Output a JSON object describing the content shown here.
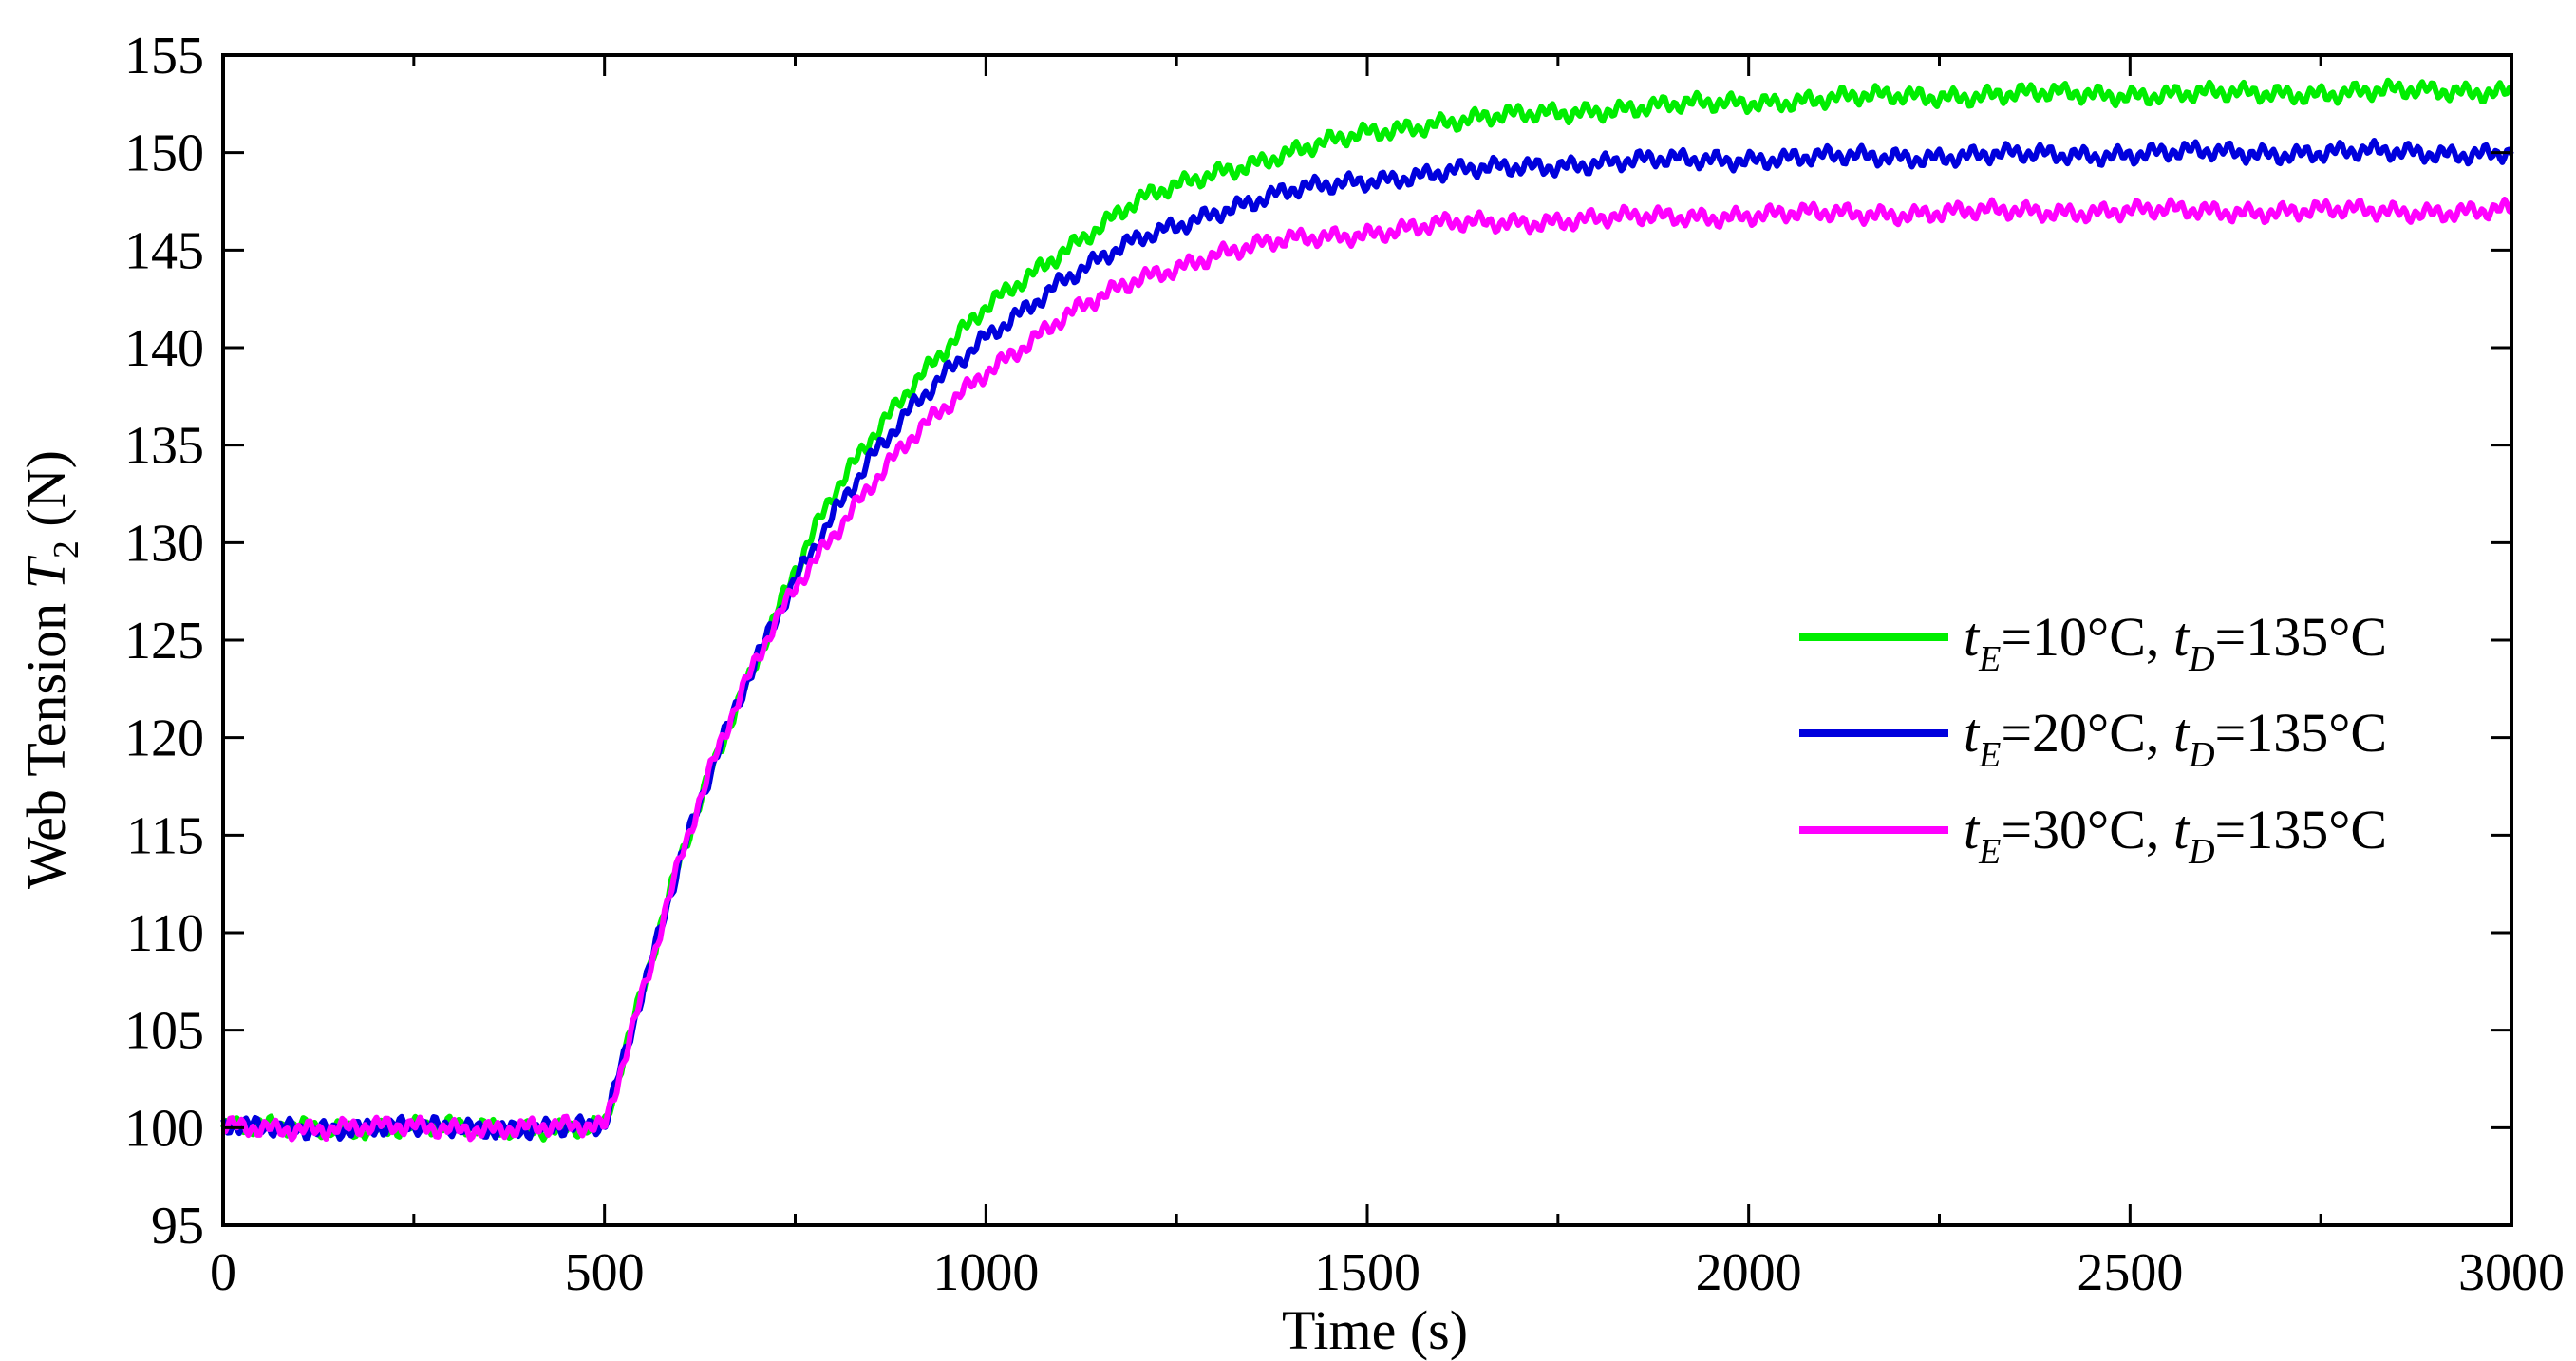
{
  "chart_data": {
    "type": "line",
    "title": "",
    "xlabel": "Time (s)",
    "ylabel": {
      "prefix": "Web Tension ",
      "symbol": "T",
      "subscript": "2",
      "suffix": " (N)"
    },
    "xlim": [
      0,
      3000
    ],
    "ylim": [
      95,
      155
    ],
    "x_ticks": [
      0,
      500,
      1000,
      1500,
      2000,
      2500,
      3000
    ],
    "y_ticks": [
      95,
      100,
      105,
      110,
      115,
      120,
      125,
      130,
      135,
      140,
      145,
      150,
      155
    ],
    "x_tick_labels": [
      "0",
      "500",
      "1000",
      "1500",
      "2000",
      "2500",
      "3000"
    ],
    "y_tick_labels": [
      "95",
      "100",
      "105",
      "110",
      "115",
      "120",
      "125",
      "130",
      "135",
      "140",
      "145",
      "150",
      "155"
    ],
    "grid": false,
    "legend_position": "right-middle",
    "x": [
      0,
      250,
      500,
      550,
      600,
      650,
      700,
      750,
      800,
      850,
      900,
      1000,
      1100,
      1200,
      1300,
      1400,
      1500,
      1600,
      1800,
      2000,
      2200,
      2400,
      2600,
      2800,
      3000
    ],
    "series": [
      {
        "name": "tE=10°C, tD=135°C",
        "legend": {
          "t1": "t",
          "s1": "E",
          "m1": "=10°C, ",
          "t2": "t",
          "s2": "D",
          "m2": "=135°C"
        },
        "color": "#00ee00",
        "values": [
          100.0,
          100.0,
          100.0,
          107.0,
          114.0,
          119.5,
          124.0,
          128.5,
          132.5,
          135.5,
          138.0,
          142.0,
          145.0,
          147.5,
          149.0,
          150.0,
          151.0,
          151.6,
          152.2,
          152.6,
          152.9,
          153.0,
          153.0,
          153.1,
          153.2
        ]
      },
      {
        "name": "tE=20°C, tD=135°C",
        "legend": {
          "t1": "t",
          "s1": "E",
          "m1": "=20°C, ",
          "t2": "t",
          "s2": "D",
          "m2": "=135°C"
        },
        "color": "#0000dd",
        "values": [
          100.0,
          100.0,
          100.0,
          107.0,
          114.0,
          119.5,
          124.0,
          128.0,
          131.5,
          134.5,
          136.8,
          140.5,
          143.5,
          145.5,
          147.0,
          148.0,
          148.6,
          149.0,
          149.5,
          149.7,
          149.8,
          149.9,
          150.0,
          150.0,
          150.0
        ]
      },
      {
        "name": "tE=30°C, tD=135°C",
        "legend": {
          "t1": "t",
          "s1": "E",
          "m1": "=30°C, ",
          "t2": "t",
          "s2": "D",
          "m2": "=135°C"
        },
        "color": "#ff00ff",
        "values": [
          100.0,
          100.0,
          100.0,
          107.0,
          114.0,
          119.5,
          124.0,
          127.8,
          130.5,
          133.0,
          135.2,
          138.8,
          141.5,
          143.5,
          144.8,
          145.5,
          145.9,
          146.3,
          146.6,
          146.8,
          146.9,
          147.0,
          147.0,
          147.0,
          147.0
        ]
      }
    ]
  }
}
